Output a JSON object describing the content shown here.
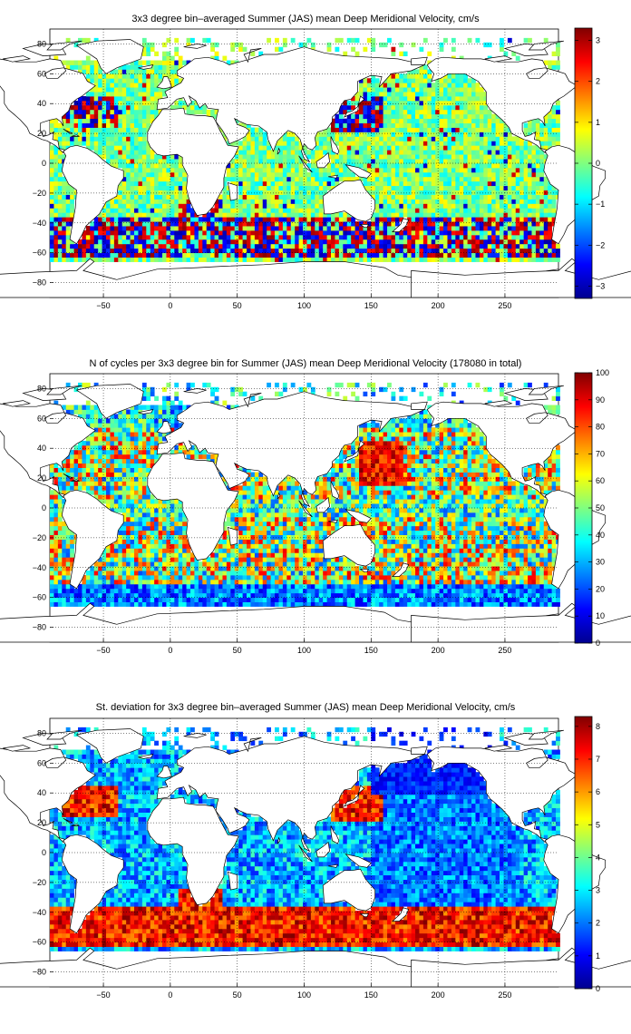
{
  "figure": {
    "panels": [
      {
        "id": "mean",
        "title": "3x3 degree bin–averaged Summer (JAS) mean Deep Meridional Velocity, cm/s",
        "colorbar_ticks": [
          "3",
          "2",
          "1",
          "0",
          "−1",
          "−2",
          "−3"
        ]
      },
      {
        "id": "count",
        "title": "N of cycles per 3x3 degree bin for Summer (JAS) mean Deep Meridional Velocity (178080 in total)",
        "colorbar_ticks": [
          "100",
          "90",
          "80",
          "70",
          "60",
          "50",
          "40",
          "30",
          "20",
          "10",
          "0"
        ]
      },
      {
        "id": "std",
        "title": "St. deviation for 3x3 degree bin–averaged Summer (JAS) mean Deep Meridional Velocity, cm/s",
        "colorbar_ticks": [
          "8",
          "7",
          "6",
          "5",
          "4",
          "3",
          "2",
          "1",
          "0"
        ]
      }
    ]
  },
  "chart_data": [
    {
      "type": "heatmap",
      "title": "3x3 degree bin–averaged Summer (JAS) mean Deep Meridional Velocity, cm/s",
      "xlim": [
        -90,
        290
      ],
      "ylim": [
        -90,
        90
      ],
      "xticks": [
        -50,
        0,
        50,
        100,
        150,
        200,
        250
      ],
      "yticks": [
        80,
        60,
        40,
        20,
        0,
        -20,
        -40,
        -60,
        -80
      ],
      "xticklabels": [
        "−50",
        "0",
        "50",
        "100",
        "150",
        "200",
        "250"
      ],
      "yticklabels": [
        "80",
        "60",
        "40",
        "20",
        "0",
        "−20",
        "−40",
        "−60",
        "−80"
      ],
      "bin_size_deg": 3,
      "colormap": "jet",
      "clim": [
        -3.3,
        3.3
      ],
      "colorbar_ticks": [
        3,
        2,
        1,
        0,
        -1,
        -2,
        -3
      ],
      "grid": true
    },
    {
      "type": "heatmap",
      "title": "N of cycles per 3x3 degree bin for Summer (JAS) mean Deep Meridional Velocity (178080 in total)",
      "xlim": [
        -90,
        290
      ],
      "ylim": [
        -90,
        90
      ],
      "xticks": [
        -50,
        0,
        50,
        100,
        150,
        200,
        250
      ],
      "yticks": [
        80,
        60,
        40,
        20,
        0,
        -20,
        -40,
        -60,
        -80
      ],
      "xticklabels": [
        "−50",
        "0",
        "50",
        "100",
        "150",
        "200",
        "250"
      ],
      "yticklabels": [
        "80",
        "60",
        "40",
        "20",
        "0",
        "−20",
        "−40",
        "−60",
        "−80"
      ],
      "bin_size_deg": 3,
      "colormap": "jet",
      "clim": [
        0,
        100
      ],
      "colorbar_ticks": [
        100,
        90,
        80,
        70,
        60,
        50,
        40,
        30,
        20,
        10,
        0
      ],
      "total_cycles": 178080,
      "grid": true
    },
    {
      "type": "heatmap",
      "title": "St. deviation for 3x3 degree bin–averaged Summer (JAS) mean Deep Meridional Velocity, cm/s",
      "xlim": [
        -90,
        290
      ],
      "ylim": [
        -90,
        90
      ],
      "xticks": [
        -50,
        0,
        50,
        100,
        150,
        200,
        250
      ],
      "yticks": [
        80,
        60,
        40,
        20,
        0,
        -20,
        -40,
        -60,
        -80
      ],
      "xticklabels": [
        "−50",
        "0",
        "50",
        "100",
        "150",
        "200",
        "250"
      ],
      "yticklabels": [
        "80",
        "60",
        "40",
        "20",
        "0",
        "−20",
        "−40",
        "−60",
        "−80"
      ],
      "bin_size_deg": 3,
      "colormap": "jet",
      "clim": [
        0,
        8.3
      ],
      "colorbar_ticks": [
        8,
        7,
        6,
        5,
        4,
        3,
        2,
        1,
        0
      ],
      "grid": true
    }
  ]
}
